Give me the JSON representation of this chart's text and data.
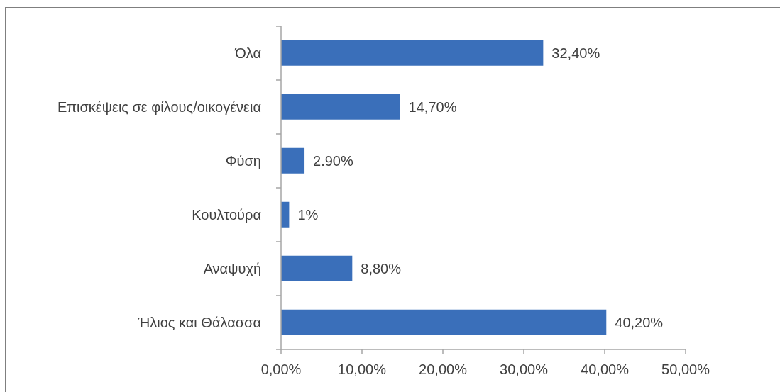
{
  "chart_data": {
    "type": "bar",
    "orientation": "horizontal",
    "categories": [
      "Όλα",
      "Επισκέψεις σε φίλους/οικογένεια",
      "Φύση",
      "Κουλτούρα",
      "Αναψυχή",
      "Ήλιος και Θάλασσα"
    ],
    "values": [
      32.4,
      14.7,
      2.9,
      1,
      8.8,
      40.2
    ],
    "value_labels": [
      "32,40%",
      "14,70%",
      "2.90%",
      "1%",
      "8,80%",
      "40,20%"
    ],
    "color": "#3a6fba",
    "xlim": [
      0,
      50
    ],
    "xticks": [
      {
        "value": 0,
        "label": "0,00%"
      },
      {
        "value": 10,
        "label": "10,00%"
      },
      {
        "value": 20,
        "label": "20,00%"
      },
      {
        "value": 30,
        "label": "30,00%"
      },
      {
        "value": 40,
        "label": "40,00%"
      },
      {
        "value": 50,
        "label": "50,00%"
      }
    ]
  }
}
